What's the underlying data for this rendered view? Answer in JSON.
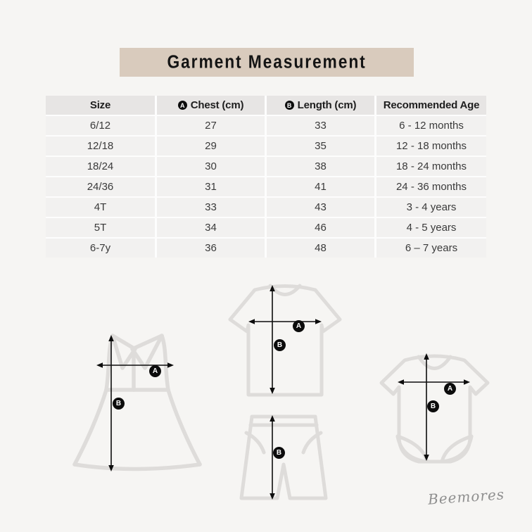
{
  "title": {
    "text": "Garment Measurement"
  },
  "table": {
    "columns": [
      {
        "label": "Size",
        "badge": ""
      },
      {
        "label": "Chest (cm)",
        "badge": "A"
      },
      {
        "label": "Length (cm)",
        "badge": "B"
      },
      {
        "label": "Recommended Age",
        "badge": ""
      }
    ],
    "rows": [
      [
        "6/12",
        "27",
        "33",
        "6 - 12 months"
      ],
      [
        "12/18",
        "29",
        "35",
        "12 - 18 months"
      ],
      [
        "18/24",
        "30",
        "38",
        "18 - 24 months"
      ],
      [
        "24/36",
        "31",
        "41",
        "24 - 36 months"
      ],
      [
        "4T",
        "33",
        "43",
        "3 - 4 years"
      ],
      [
        "5T",
        "34",
        "46",
        "4 - 5 years"
      ],
      [
        "6-7y",
        "36",
        "48",
        "6 – 7 years"
      ]
    ]
  },
  "diagrams": {
    "dress": {
      "chest_label": "A",
      "length_label": "B"
    },
    "tshirt": {
      "chest_label": "A",
      "length_label": "B"
    },
    "shorts": {
      "length_label": "B"
    },
    "bodysuit": {
      "chest_label": "A",
      "length_label": "B"
    }
  },
  "signature": {
    "text": "Beemores"
  },
  "colors": {
    "page_background": "#f6f5f3",
    "title_background": "#d9cbbd",
    "header_row": "#e7e5e4",
    "data_row": "#f2f1f0",
    "table_gridlines": "#fdfdfd",
    "garment_outline": "#dedcda",
    "arrow": "#0d0d0d",
    "badge": "#0c0c0c",
    "signature_text": "#8f8f8f"
  }
}
